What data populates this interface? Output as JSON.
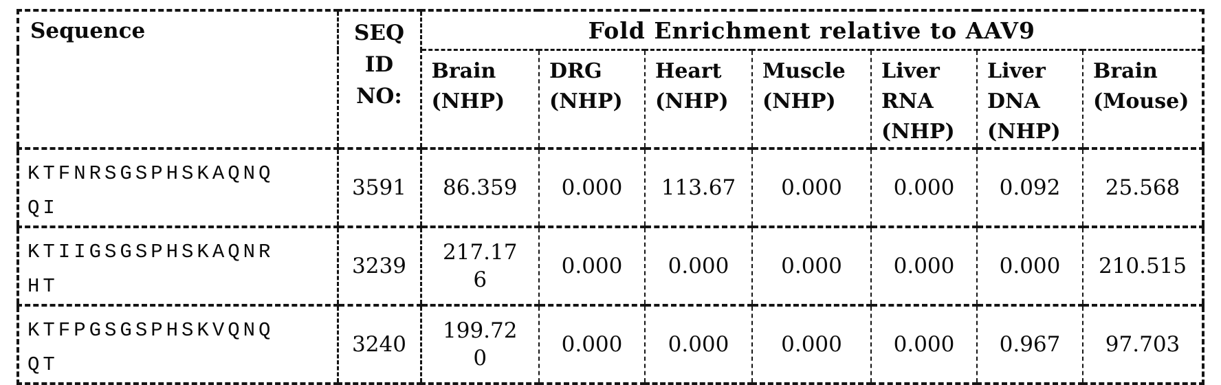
{
  "table": {
    "group_header": "Fold Enrichment relative to AAV9",
    "sequence_header": "Sequence",
    "seq_id_header": "SEQ\nID\nNO:",
    "sub_headers": [
      "Brain\n(NHP)",
      "DRG\n(NHP)",
      "Heart\n(NHP)",
      "Muscle\n(NHP)",
      "Liver\nRNA\n(NHP)",
      "Liver\nDNA\n(NHP)",
      "Brain\n(Mouse)"
    ],
    "rows": [
      {
        "sequence": "KTFNRSGSPHSKAQNQ\nQI",
        "seq_id": "3591",
        "values": [
          "86.359",
          "0.000",
          "113.67",
          "0.000",
          "0.000",
          "0.092",
          "25.568"
        ]
      },
      {
        "sequence": "KTIIGSGSPHSKAQNR\nHT",
        "seq_id": "3239",
        "values": [
          "217.17\n6",
          "0.000",
          "0.000",
          "0.000",
          "0.000",
          "0.000",
          "210.515"
        ]
      },
      {
        "sequence": "KTFPGSGSPHSKVQNQ\nQT",
        "seq_id": "3240",
        "values": [
          "199.72\n0",
          "0.000",
          "0.000",
          "0.000",
          "0.000",
          "0.967",
          "97.703"
        ]
      }
    ],
    "colors": {
      "border": "#141414",
      "text": "#0a0a0a",
      "background": "#ffffff"
    }
  }
}
